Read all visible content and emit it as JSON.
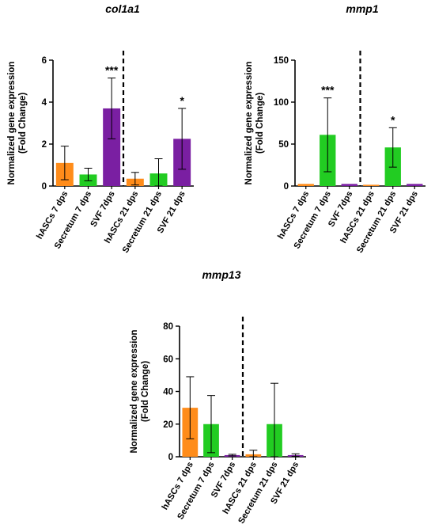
{
  "colors": {
    "hASCs": "#ff8c1a",
    "Secretum": "#22cc22",
    "SVF": "#7a1fa2",
    "axis": "#000000"
  },
  "chart_data": [
    {
      "type": "bar",
      "title": "col1a1",
      "ylabel": "Normalized gene expression\n(Fold Change)",
      "ylim": [
        0,
        6
      ],
      "yticks": [
        0,
        2,
        4,
        6
      ],
      "divider_after_index": 2,
      "categories": [
        "hASCs 7 dps",
        "Secretum 7 dps",
        "SVF 7dps",
        "hASCs 21 dps",
        "Secretum 21 dps",
        "SVF 21 dps"
      ],
      "values": [
        1.1,
        0.55,
        3.7,
        0.35,
        0.6,
        2.25
      ],
      "errors": [
        0.8,
        0.3,
        1.45,
        0.3,
        0.7,
        1.45
      ],
      "bar_colors": [
        "hASCs",
        "Secretum",
        "SVF",
        "hASCs",
        "Secretum",
        "SVF"
      ],
      "significance": [
        "",
        "",
        "***",
        "",
        "",
        "*"
      ]
    },
    {
      "type": "bar",
      "title": "mmp1",
      "ylabel": "Normalized gene expression\n(Fold Change)",
      "ylim": [
        0,
        150
      ],
      "yticks": [
        0,
        50,
        100,
        150
      ],
      "divider_after_index": 2,
      "categories": [
        "hASCs 7 dps",
        "Secretum 7 dps",
        "SVF 7dps",
        "hASCs 21 dps",
        "Secretum 21 dps",
        "SVF 21 dps"
      ],
      "values": [
        2.5,
        61,
        2.5,
        1.5,
        46,
        2.5
      ],
      "errors": [
        0,
        44,
        0,
        0,
        23.5,
        0
      ],
      "bar_colors": [
        "hASCs",
        "Secretum",
        "SVF",
        "hASCs",
        "Secretum",
        "SVF"
      ],
      "significance": [
        "",
        "***",
        "",
        "",
        "*",
        ""
      ]
    },
    {
      "type": "bar",
      "title": "mmp13",
      "ylabel": "Normalized gene expression\n(Fold Change)",
      "ylim": [
        0,
        80
      ],
      "yticks": [
        0,
        20,
        40,
        60,
        80
      ],
      "divider_after_index": 2,
      "categories": [
        "hASCs 7 dps",
        "Secretum 7 dps",
        "SVF 7dps",
        "hASCs 21 dps",
        "Secretum 21 dps",
        "SVF 21 dps"
      ],
      "values": [
        30,
        20,
        1,
        1.5,
        20,
        1
      ],
      "errors": [
        19,
        17.5,
        0.5,
        2.5,
        25,
        0.8
      ],
      "bar_colors": [
        "hASCs",
        "Secretum",
        "SVF",
        "hASCs",
        "Secretum",
        "SVF"
      ],
      "significance": [
        "",
        "",
        "",
        "",
        "",
        ""
      ]
    }
  ]
}
